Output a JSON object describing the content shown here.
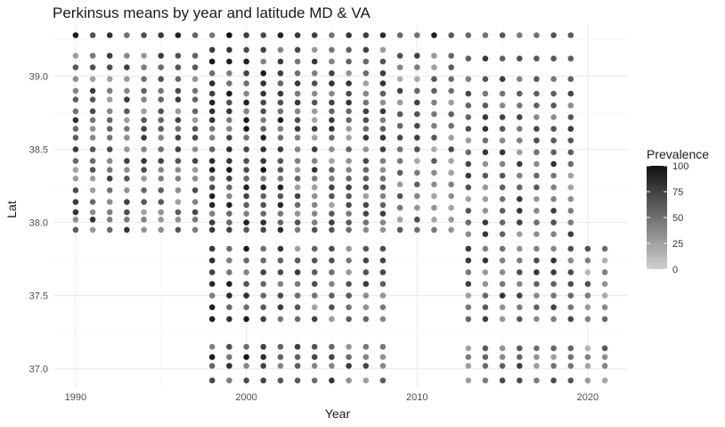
{
  "chart_data": {
    "type": "scatter",
    "title": "Perkinsus means by year and latitude MD & VA",
    "xlabel": "Year",
    "ylabel": "Lat",
    "xlim": [
      1988.7,
      2022.3
    ],
    "ylim": [
      36.87,
      39.35
    ],
    "x_ticks": [
      1990,
      2000,
      2010,
      2020
    ],
    "y_ticks": [
      37.0,
      37.5,
      38.0,
      38.5,
      39.0
    ],
    "legend": {
      "title": "Prevalence",
      "ticks": [
        0,
        25,
        50,
        75,
        100
      ],
      "range": [
        0,
        100
      ],
      "low_color": "#d0d0d0",
      "high_color": "#111111",
      "placement": "right"
    },
    "grid": true,
    "year_groups": [
      {
        "years": [
          1990,
          1991,
          1992,
          1993,
          1994,
          1995,
          1996,
          1997
        ],
        "lats": [
          39.28,
          39.14,
          39.06,
          38.98,
          38.9,
          38.84,
          38.76,
          38.7,
          38.64,
          38.58,
          38.5,
          38.42,
          38.36,
          38.3,
          38.22,
          38.14,
          38.07,
          38.02,
          37.95
        ]
      },
      {
        "years": [
          1998,
          1999,
          2000,
          2001,
          2002,
          2003,
          2004,
          2005,
          2006,
          2007,
          2008
        ],
        "lats": [
          39.28,
          39.18,
          39.1,
          39.02,
          38.95,
          38.88,
          38.82,
          38.76,
          38.7,
          38.64,
          38.58,
          38.5,
          38.42,
          38.36,
          38.3,
          38.24,
          38.18,
          38.12,
          38.06,
          38.0,
          37.95,
          37.82,
          37.74,
          37.66,
          37.58,
          37.5,
          37.42,
          37.34,
          37.15,
          37.08,
          37.02,
          36.92
        ]
      },
      {
        "years": [
          2009,
          2010,
          2011,
          2012
        ],
        "lats": [
          39.28,
          39.14,
          39.06,
          38.98,
          38.9,
          38.82,
          38.74,
          38.66,
          38.58,
          38.5,
          38.42,
          38.34,
          38.26,
          38.18,
          38.1,
          38.02,
          37.95
        ]
      },
      {
        "years": [
          2013,
          2014,
          2015,
          2016,
          2017,
          2018,
          2019
        ],
        "lats": [
          39.28,
          39.12,
          38.98,
          38.88,
          38.8,
          38.72,
          38.64,
          38.56,
          38.48,
          38.4,
          38.32,
          38.24,
          38.16,
          38.08,
          38.0,
          37.92,
          37.82,
          37.74,
          37.66,
          37.58,
          37.5,
          37.42,
          37.34,
          37.14,
          37.08,
          37.02,
          36.92
        ]
      },
      {
        "years": [
          2020,
          2021
        ],
        "lats": [
          37.82,
          37.74,
          37.66,
          37.58,
          37.5,
          37.42,
          37.34,
          37.14,
          37.08,
          37.02,
          36.92
        ]
      }
    ]
  }
}
